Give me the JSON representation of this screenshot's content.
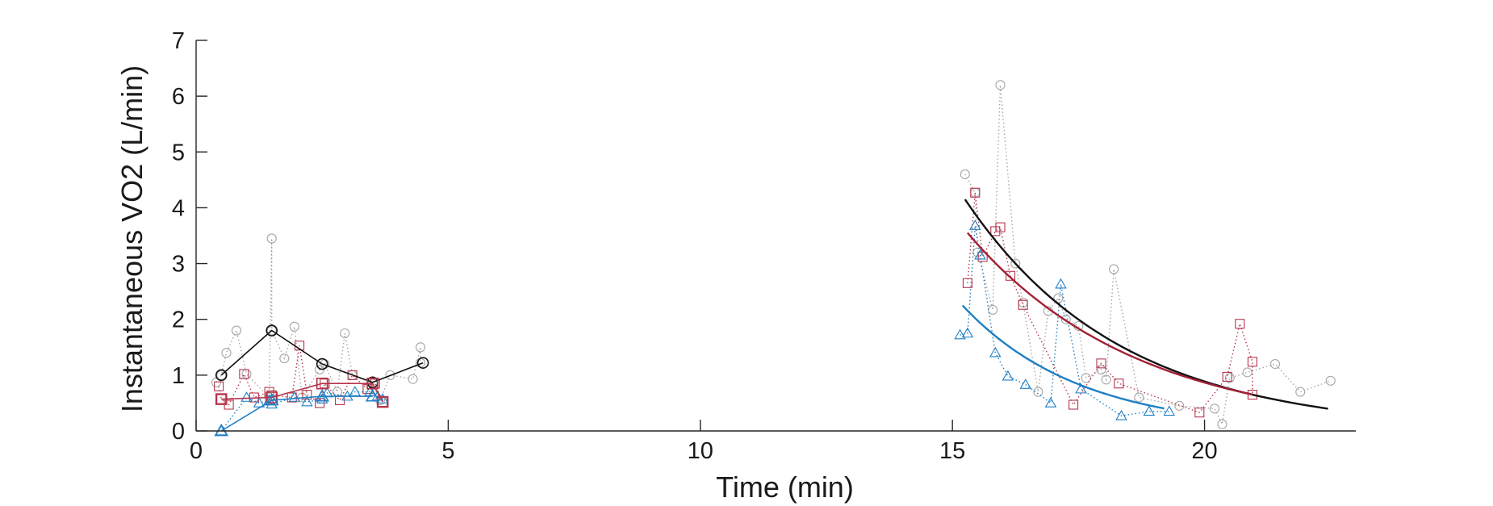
{
  "chart_data": {
    "type": "scatter",
    "xlabel": "Time (min)",
    "ylabel": "Instantaneous VO2 (L/min)",
    "xlim": [
      0,
      23
    ],
    "ylim": [
      0,
      7
    ],
    "xticks": [
      0,
      5,
      10,
      15,
      20
    ],
    "yticks": [
      0,
      1,
      2,
      3,
      4,
      5,
      6,
      7
    ],
    "grid": false,
    "legend": "none",
    "series": [
      {
        "marker": "circle",
        "kind": "raw",
        "color": "#a6a6a6",
        "line": "dotted",
        "segments": [
          [
            [
              0.4,
              0.87
            ],
            [
              0.5,
              1.0
            ],
            [
              0.6,
              1.4
            ],
            [
              0.8,
              1.8
            ],
            [
              1.0,
              1.02
            ],
            [
              1.45,
              0.6
            ],
            [
              1.5,
              3.45
            ],
            [
              1.5,
              1.8
            ],
            [
              1.75,
              1.3
            ],
            [
              1.95,
              1.87
            ],
            [
              2.1,
              0.6
            ],
            [
              2.45,
              1.1
            ],
            [
              2.55,
              1.2
            ],
            [
              2.8,
              0.7
            ],
            [
              2.95,
              1.75
            ],
            [
              3.1,
              1.0
            ],
            [
              3.5,
              0.85
            ],
            [
              3.65,
              0.55
            ],
            [
              3.85,
              1.0
            ],
            [
              4.3,
              0.93
            ],
            [
              4.45,
              1.5
            ],
            [
              4.45,
              1.22
            ]
          ],
          [
            [
              15.25,
              4.6
            ],
            [
              15.45,
              4.27
            ],
            [
              15.5,
              3.2
            ],
            [
              15.8,
              2.17
            ],
            [
              15.95,
              6.2
            ],
            [
              16.25,
              3.0
            ],
            [
              16.4,
              2.3
            ],
            [
              16.7,
              0.7
            ],
            [
              16.9,
              2.15
            ],
            [
              17.1,
              2.38
            ],
            [
              17.25,
              2.0
            ],
            [
              17.5,
              1.88
            ],
            [
              17.65,
              0.95
            ],
            [
              17.95,
              1.1
            ],
            [
              18.05,
              0.92
            ],
            [
              18.2,
              2.9
            ],
            [
              18.7,
              0.6
            ],
            [
              19.5,
              0.45
            ],
            [
              20.2,
              0.4
            ],
            [
              20.35,
              0.12
            ],
            [
              20.5,
              0.95
            ],
            [
              20.85,
              1.05
            ],
            [
              21.4,
              1.2
            ],
            [
              21.9,
              0.7
            ],
            [
              22.5,
              0.9
            ]
          ]
        ]
      },
      {
        "marker": "square",
        "kind": "raw",
        "color": "#b5354c",
        "line": "dotted",
        "segments": [
          [
            [
              0.45,
              0.8
            ],
            [
              0.5,
              0.57
            ],
            [
              0.65,
              0.47
            ],
            [
              0.95,
              1.02
            ],
            [
              1.15,
              0.6
            ],
            [
              1.45,
              0.7
            ],
            [
              1.5,
              0.64
            ],
            [
              1.9,
              0.6
            ],
            [
              2.05,
              1.53
            ],
            [
              2.2,
              0.65
            ],
            [
              2.45,
              0.5
            ],
            [
              2.55,
              0.85
            ],
            [
              2.85,
              0.55
            ],
            [
              3.1,
              1.0
            ],
            [
              3.4,
              0.75
            ],
            [
              3.55,
              0.85
            ],
            [
              3.7,
              0.52
            ]
          ],
          [
            [
              15.3,
              2.65
            ],
            [
              15.45,
              4.27
            ],
            [
              15.6,
              3.12
            ],
            [
              15.85,
              3.58
            ],
            [
              15.95,
              3.65
            ],
            [
              16.15,
              2.78
            ],
            [
              16.4,
              2.26
            ],
            [
              17.4,
              0.47
            ],
            [
              17.95,
              1.21
            ],
            [
              18.3,
              0.85
            ],
            [
              19.9,
              0.33
            ],
            [
              20.45,
              0.97
            ],
            [
              20.7,
              1.92
            ],
            [
              20.95,
              1.24
            ],
            [
              20.95,
              0.65
            ]
          ]
        ]
      },
      {
        "marker": "triangle",
        "kind": "raw",
        "color": "#1f7fc4",
        "line": "dotted",
        "segments": [
          [
            [
              0.5,
              0.0
            ],
            [
              1.0,
              0.6
            ],
            [
              1.25,
              0.5
            ],
            [
              1.45,
              0.55
            ],
            [
              1.5,
              0.48
            ],
            [
              1.95,
              0.6
            ],
            [
              2.2,
              0.52
            ],
            [
              2.5,
              0.57
            ],
            [
              2.6,
              0.68
            ],
            [
              3.0,
              0.62
            ],
            [
              3.15,
              0.7
            ],
            [
              3.45,
              0.7
            ],
            [
              3.6,
              0.62
            ],
            [
              3.7,
              0.57
            ]
          ],
          [
            [
              15.15,
              1.72
            ],
            [
              15.3,
              1.75
            ],
            [
              15.45,
              3.68
            ],
            [
              15.55,
              3.15
            ],
            [
              15.85,
              1.4
            ],
            [
              16.1,
              0.98
            ],
            [
              16.45,
              0.83
            ],
            [
              16.95,
              0.5
            ],
            [
              17.15,
              2.63
            ],
            [
              17.55,
              0.75
            ],
            [
              18.35,
              0.27
            ],
            [
              18.9,
              0.35
            ],
            [
              19.3,
              0.35
            ]
          ]
        ]
      },
      {
        "marker": "circle",
        "kind": "average",
        "color": "#111111",
        "line": "solid",
        "segments": [
          [
            [
              0.5,
              1.0
            ],
            [
              1.5,
              1.8
            ],
            [
              2.5,
              1.2
            ],
            [
              3.5,
              0.87
            ],
            [
              4.5,
              1.22
            ]
          ]
        ]
      },
      {
        "marker": "square",
        "kind": "average",
        "color": "#b5354c",
        "line": "solid",
        "segments": [
          [
            [
              0.5,
              0.57
            ],
            [
              1.5,
              0.6
            ],
            [
              2.5,
              0.85
            ],
            [
              3.5,
              0.85
            ],
            [
              3.7,
              0.52
            ]
          ]
        ]
      },
      {
        "marker": "triangle",
        "kind": "average",
        "color": "#1f7fc4",
        "line": "solid",
        "segments": [
          [
            [
              0.5,
              0.0
            ],
            [
              1.5,
              0.55
            ],
            [
              2.5,
              0.62
            ],
            [
              3.5,
              0.62
            ]
          ]
        ]
      },
      {
        "kind": "fit",
        "color": "#111111",
        "line": "solid",
        "curve": {
          "x0": 15.25,
          "x1": 22.45,
          "a": 4.15,
          "k": 0.325
        }
      },
      {
        "kind": "fit",
        "color": "#a31f34",
        "line": "solid",
        "curve": {
          "x0": 15.3,
          "x1": 20.95,
          "a": 3.55,
          "k": 0.3
        }
      },
      {
        "kind": "fit",
        "color": "#1f7fc4",
        "line": "solid",
        "curve": {
          "x0": 15.2,
          "x1": 19.2,
          "a": 2.25,
          "k": 0.43
        }
      }
    ]
  }
}
